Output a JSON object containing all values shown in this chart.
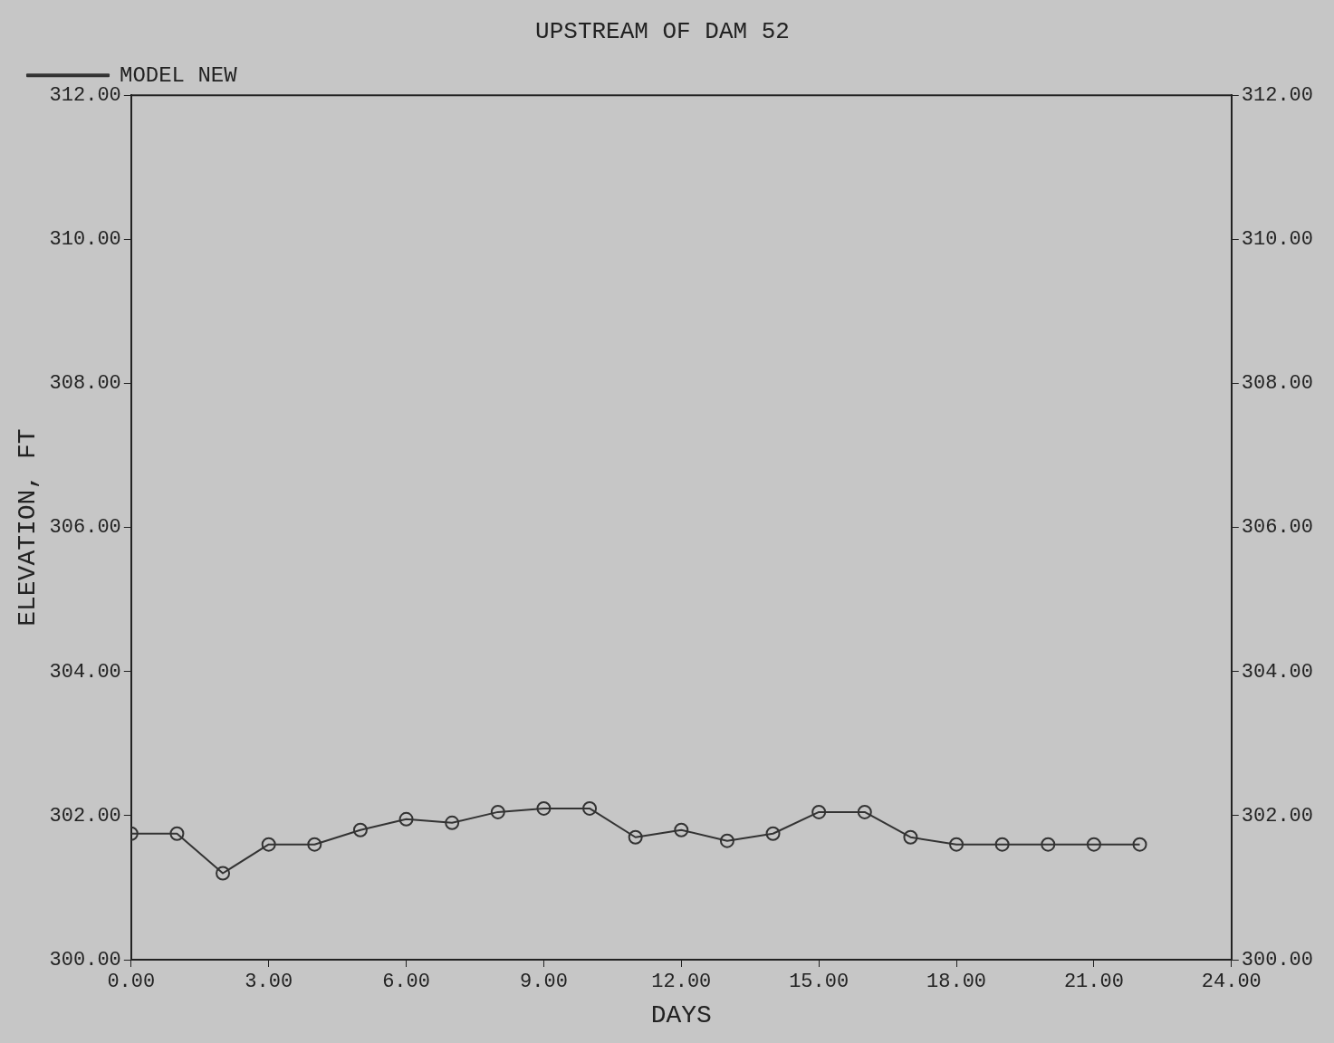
{
  "chart_data": {
    "type": "line",
    "title": "UPSTREAM OF DAM 52",
    "xlabel": "DAYS",
    "ylabel": "ELEVATION, FT",
    "x": [
      0,
      1,
      2,
      3,
      4,
      5,
      6,
      7,
      8,
      9,
      10,
      11,
      12,
      13,
      14,
      15,
      16,
      17,
      18,
      19,
      20,
      21,
      22
    ],
    "series": [
      {
        "name": "MODEL NEW",
        "color": "#333333",
        "values": [
          301.75,
          301.75,
          301.2,
          301.6,
          301.6,
          301.8,
          301.95,
          301.9,
          302.05,
          302.1,
          302.1,
          301.7,
          301.8,
          301.65,
          301.75,
          302.05,
          302.05,
          301.7,
          301.6,
          301.6,
          301.6,
          301.6,
          301.6
        ]
      }
    ],
    "xlim": [
      0,
      24
    ],
    "xticks": [
      {
        "value": 0,
        "label": "0.00"
      },
      {
        "value": 3,
        "label": "3.00"
      },
      {
        "value": 6,
        "label": "6.00"
      },
      {
        "value": 9,
        "label": "9.00"
      },
      {
        "value": 12,
        "label": "12.00"
      },
      {
        "value": 15,
        "label": "15.00"
      },
      {
        "value": 18,
        "label": "18.00"
      },
      {
        "value": 21,
        "label": "21.00"
      },
      {
        "value": 24,
        "label": "24.00"
      }
    ],
    "ylim": [
      300,
      312
    ],
    "yticks": [
      {
        "value": 300,
        "label": "300.00"
      },
      {
        "value": 302,
        "label": "302.00"
      },
      {
        "value": 304,
        "label": "304.00"
      },
      {
        "value": 306,
        "label": "306.00"
      },
      {
        "value": 308,
        "label": "308.00"
      },
      {
        "value": 310,
        "label": "310.00"
      },
      {
        "value": 312,
        "label": "312.00"
      }
    ],
    "y2lim": [
      300,
      312
    ],
    "y2ticks": [
      {
        "value": 300,
        "label": "300.00"
      },
      {
        "value": 302,
        "label": "302.00"
      },
      {
        "value": 304,
        "label": "304.00"
      },
      {
        "value": 306,
        "label": "306.00"
      },
      {
        "value": 308,
        "label": "308.00"
      },
      {
        "value": 310,
        "label": "310.00"
      },
      {
        "value": 312,
        "label": "312.00"
      }
    ],
    "grid": false,
    "legend": "top left",
    "marker": "circle",
    "line_style": "solid"
  }
}
